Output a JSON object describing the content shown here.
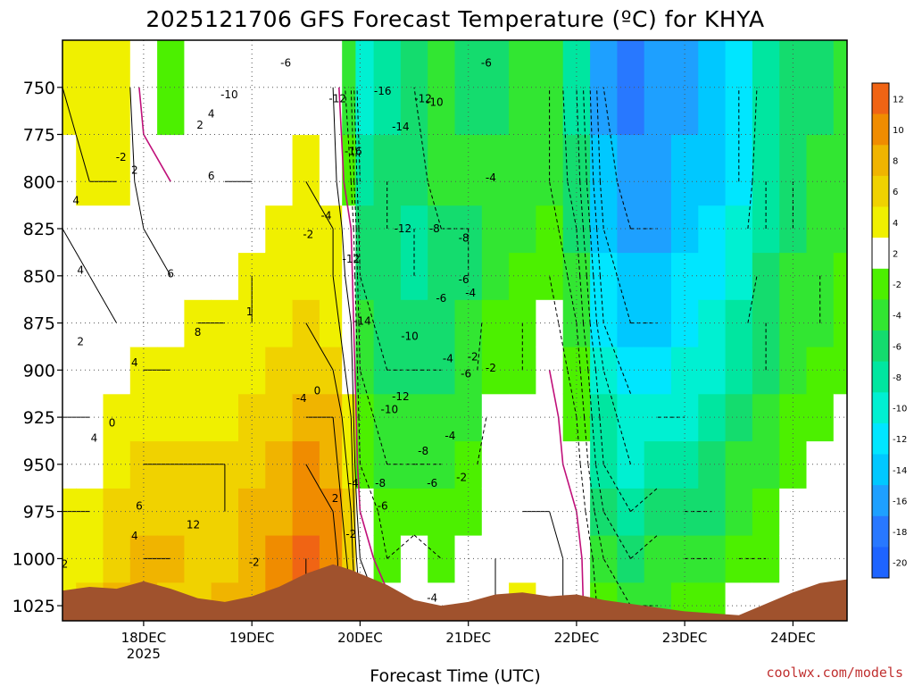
{
  "chart_data": {
    "type": "heatmap",
    "title": "2025121706 GFS Forecast Temperature (ºC) for KHYA",
    "xlabel": "Forecast Time (UTC)",
    "ylabel": "",
    "credit": "coolwx.com/models",
    "y_axis": {
      "units": "hPa",
      "range": [
        725,
        1033
      ],
      "ticks": [
        "750",
        "775",
        "800",
        "825",
        "850",
        "875",
        "900",
        "925",
        "950",
        "975",
        "1000",
        "1025"
      ],
      "tick_values": [
        750,
        775,
        800,
        825,
        850,
        875,
        900,
        925,
        950,
        975,
        1000,
        1025
      ]
    },
    "x_axis": {
      "units": "forecast hours",
      "range": [
        0,
        174
      ],
      "ticks": [
        {
          "hour": 18,
          "label": "18DEC",
          "sub": "2025"
        },
        {
          "hour": 42,
          "label": "19DEC",
          "sub": ""
        },
        {
          "hour": 66,
          "label": "20DEC",
          "sub": ""
        },
        {
          "hour": 90,
          "label": "21DEC",
          "sub": ""
        },
        {
          "hour": 114,
          "label": "22DEC",
          "sub": ""
        },
        {
          "hour": 138,
          "label": "23DEC",
          "sub": ""
        },
        {
          "hour": 162,
          "label": "24DEC",
          "sub": ""
        }
      ]
    },
    "colorbar": {
      "levels": [
        "12",
        "10",
        "8",
        "6",
        "4",
        "2",
        "-2",
        "-4",
        "-6",
        "-8",
        "-10",
        "-12",
        "-14",
        "-16",
        "-18",
        "-20"
      ],
      "colors": [
        "#f06414",
        "#f08c00",
        "#f0b400",
        "#f0d200",
        "#f0f000",
        "#ffffff",
        "#4cf000",
        "#32e632",
        "#14dc6e",
        "#00e6a0",
        "#00f0d2",
        "#00e6ff",
        "#00c8ff",
        "#1ea0ff",
        "#2878ff",
        "#1e64ff"
      ]
    },
    "columns": [
      {
        "hour": 0,
        "temps": [
          4,
          4,
          4,
          3,
          2,
          1,
          0,
          1,
          2,
          3,
          4
        ]
      },
      {
        "hour": 6,
        "temps": [
          6,
          5,
          4,
          3,
          2,
          1,
          1,
          2,
          3,
          4,
          5
        ]
      },
      {
        "hour": 12,
        "temps": [
          8,
          7,
          6,
          5,
          4,
          3,
          2,
          3,
          3,
          4,
          5
        ]
      },
      {
        "hour": 18,
        "temps": [
          8,
          8,
          7,
          6,
          5,
          4,
          3,
          2,
          2,
          1,
          -1
        ]
      },
      {
        "hour": 24,
        "temps": [
          7,
          8,
          7,
          6,
          5,
          4,
          3,
          2,
          1,
          0,
          -2
        ]
      },
      {
        "hour": 30,
        "temps": [
          6,
          7,
          7,
          6,
          5,
          5,
          4,
          3,
          2,
          1,
          0
        ]
      },
      {
        "hour": 36,
        "temps": [
          8,
          7,
          6,
          6,
          5,
          5,
          4,
          3,
          3,
          2,
          1
        ]
      },
      {
        "hour": 42,
        "temps": [
          9,
          9,
          8,
          7,
          6,
          5,
          4,
          4,
          3,
          2,
          1
        ]
      },
      {
        "hour": 48,
        "temps": [
          11,
          10,
          9,
          8,
          7,
          6,
          5,
          5,
          4,
          3,
          2
        ]
      },
      {
        "hour": 54,
        "temps": [
          12,
          12,
          11,
          10,
          8,
          7,
          6,
          5,
          4,
          4,
          3
        ]
      },
      {
        "hour": 60,
        "temps": [
          11,
          11,
          10,
          9,
          8,
          6,
          5,
          4,
          4,
          3,
          2
        ]
      },
      {
        "hour": 64,
        "temps": [
          8,
          7,
          6,
          5,
          4,
          3,
          2,
          1,
          0,
          -2,
          -4
        ]
      },
      {
        "hour": 66,
        "temps": [
          4,
          2,
          0,
          -2,
          -3,
          -4,
          -5,
          -6,
          -7,
          -8,
          -10
        ]
      },
      {
        "hour": 72,
        "temps": [
          1,
          -2,
          -3,
          -4,
          -5,
          -6,
          -7,
          -7,
          -6,
          -6,
          -8
        ]
      },
      {
        "hour": 78,
        "temps": [
          0,
          -1,
          -3,
          -4,
          -5,
          -6,
          -7,
          -8,
          -8,
          -7,
          -6
        ]
      },
      {
        "hour": 84,
        "temps": [
          -1,
          -2,
          -3,
          -4,
          -5,
          -6,
          -7,
          -7,
          -6,
          -5,
          -5
        ]
      },
      {
        "hour": 90,
        "temps": [
          1,
          0,
          -2,
          -3,
          -4,
          -5,
          -5,
          -6,
          -6,
          -5,
          -6
        ]
      },
      {
        "hour": 96,
        "temps": [
          2,
          2,
          1,
          0,
          -1,
          -2,
          -3,
          -4,
          -4,
          -5,
          -6
        ]
      },
      {
        "hour": 102,
        "temps": [
          4,
          3,
          2,
          1,
          0,
          -2,
          -2,
          -3,
          -4,
          -4,
          -5
        ]
      },
      {
        "hour": 108,
        "temps": [
          3,
          3,
          2,
          1,
          1,
          0,
          -1,
          -2,
          -3,
          -4,
          -4
        ]
      },
      {
        "hour": 114,
        "temps": [
          1,
          1,
          0,
          -1,
          -2,
          -3,
          -4,
          -5,
          -6,
          -7,
          -8
        ]
      },
      {
        "hour": 120,
        "temps": [
          -3,
          -4,
          -6,
          -8,
          -9,
          -10,
          -12,
          -13,
          -14,
          -15,
          -16
        ]
      },
      {
        "hour": 126,
        "temps": [
          -4,
          -6,
          -8,
          -10,
          -11,
          -13,
          -14,
          -15,
          -16,
          -17,
          -18
        ]
      },
      {
        "hour": 132,
        "temps": [
          -4,
          -5,
          -7,
          -9,
          -10,
          -12,
          -14,
          -15,
          -16,
          -17,
          -17
        ]
      },
      {
        "hour": 138,
        "temps": [
          -3,
          -4,
          -6,
          -8,
          -10,
          -11,
          -12,
          -13,
          -14,
          -15,
          -16
        ]
      },
      {
        "hour": 144,
        "temps": [
          -2,
          -4,
          -6,
          -7,
          -8,
          -10,
          -11,
          -12,
          -13,
          -14,
          -15
        ]
      },
      {
        "hour": 150,
        "temps": [
          -1,
          -2,
          -4,
          -5,
          -6,
          -8,
          -9,
          -10,
          -11,
          -12,
          -12
        ]
      },
      {
        "hour": 156,
        "temps": [
          0,
          -2,
          -3,
          -4,
          -5,
          -6,
          -6,
          -7,
          -8,
          -8,
          -9
        ]
      },
      {
        "hour": 162,
        "temps": [
          1,
          0,
          -1,
          -2,
          -3,
          -4,
          -5,
          -5,
          -6,
          -6,
          -7
        ]
      },
      {
        "hour": 168,
        "temps": [
          2,
          1,
          0,
          -1,
          -2,
          -3,
          -4,
          -4,
          -5,
          -5,
          -6
        ]
      },
      {
        "hour": 174,
        "temps": [
          3,
          2,
          1,
          0,
          -1,
          -2,
          -3,
          -3,
          -4,
          -4,
          -5
        ]
      }
    ],
    "row_pressures": [
      1025,
      1000,
      975,
      950,
      925,
      900,
      875,
      850,
      825,
      800,
      750
    ],
    "terrain_surface_hpa": [
      [
        0,
        1017
      ],
      [
        6,
        1015
      ],
      [
        12,
        1016
      ],
      [
        18,
        1012
      ],
      [
        24,
        1016
      ],
      [
        30,
        1021
      ],
      [
        36,
        1023
      ],
      [
        42,
        1020
      ],
      [
        48,
        1015
      ],
      [
        54,
        1008
      ],
      [
        60,
        1003
      ],
      [
        64,
        1006
      ],
      [
        72,
        1014
      ],
      [
        78,
        1022
      ],
      [
        84,
        1025
      ],
      [
        90,
        1023
      ],
      [
        96,
        1019
      ],
      [
        102,
        1018
      ],
      [
        108,
        1020
      ],
      [
        114,
        1019
      ],
      [
        120,
        1022
      ],
      [
        126,
        1024
      ],
      [
        132,
        1026
      ],
      [
        138,
        1028
      ],
      [
        144,
        1029
      ],
      [
        150,
        1030
      ],
      [
        156,
        1024
      ],
      [
        162,
        1018
      ],
      [
        168,
        1013
      ],
      [
        174,
        1011
      ]
    ],
    "contour_labels": [
      {
        "text": "2",
        "hour": 0.5,
        "p": 1003
      },
      {
        "text": "4",
        "hour": 3,
        "p": 810
      },
      {
        "text": "4",
        "hour": 4,
        "p": 847
      },
      {
        "text": "2",
        "hour": 4,
        "p": 885
      },
      {
        "text": "4",
        "hour": 7,
        "p": 936
      },
      {
        "text": "0",
        "hour": 11,
        "p": 928
      },
      {
        "text": "-2",
        "hour": 13,
        "p": 787
      },
      {
        "text": "2",
        "hour": 16,
        "p": 794
      },
      {
        "text": "4",
        "hour": 16,
        "p": 896
      },
      {
        "text": "6",
        "hour": 17,
        "p": 972
      },
      {
        "text": "4",
        "hour": 16,
        "p": 988
      },
      {
        "text": "6",
        "hour": 24,
        "p": 849
      },
      {
        "text": "2",
        "hour": 30.5,
        "p": 770
      },
      {
        "text": "4",
        "hour": 33,
        "p": 764
      },
      {
        "text": "6",
        "hour": 33,
        "p": 797
      },
      {
        "text": "8",
        "hour": 30,
        "p": 880
      },
      {
        "text": "12",
        "hour": 29,
        "p": 982
      },
      {
        "text": "-10",
        "hour": 37,
        "p": 754
      },
      {
        "text": "1",
        "hour": 41.5,
        "p": 869
      },
      {
        "text": "-2",
        "hour": 42.5,
        "p": 1002
      },
      {
        "text": "-6",
        "hour": 49.5,
        "p": 737
      },
      {
        "text": "-4",
        "hour": 53,
        "p": 915
      },
      {
        "text": "-2",
        "hour": 54.5,
        "p": 828
      },
      {
        "text": "-4",
        "hour": 58.5,
        "p": 818
      },
      {
        "text": "0",
        "hour": 56.5,
        "p": 911
      },
      {
        "text": "2",
        "hour": 60.5,
        "p": 968
      },
      {
        "text": "-12",
        "hour": 61,
        "p": 756
      },
      {
        "text": "-16",
        "hour": 64.5,
        "p": 784
      },
      {
        "text": "-12",
        "hour": 64,
        "p": 841
      },
      {
        "text": "-14",
        "hour": 66.5,
        "p": 874
      },
      {
        "text": "-4",
        "hour": 64.5,
        "p": 960
      },
      {
        "text": "-2",
        "hour": 64,
        "p": 987
      },
      {
        "text": "-8",
        "hour": 70.5,
        "p": 960
      },
      {
        "text": "-6",
        "hour": 71,
        "p": 972
      },
      {
        "text": "-16",
        "hour": 71,
        "p": 752
      },
      {
        "text": "-14",
        "hour": 75,
        "p": 771
      },
      {
        "text": "-12",
        "hour": 75.5,
        "p": 825
      },
      {
        "text": "-10",
        "hour": 77,
        "p": 882
      },
      {
        "text": "-12",
        "hour": 75,
        "p": 914
      },
      {
        "text": "-10",
        "hour": 72.5,
        "p": 921
      },
      {
        "text": "-8",
        "hour": 80,
        "p": 943
      },
      {
        "text": "-6",
        "hour": 82,
        "p": 960
      },
      {
        "text": "-12",
        "hour": 80,
        "p": 756
      },
      {
        "text": "-10",
        "hour": 82.5,
        "p": 758
      },
      {
        "text": "-8",
        "hour": 82.5,
        "p": 825
      },
      {
        "text": "-6",
        "hour": 84,
        "p": 862
      },
      {
        "text": "-4",
        "hour": 86,
        "p": 935
      },
      {
        "text": "-4",
        "hour": 82,
        "p": 1021
      },
      {
        "text": "-2",
        "hour": 88.5,
        "p": 957
      },
      {
        "text": "-4",
        "hour": 85.5,
        "p": 894
      },
      {
        "text": "-8",
        "hour": 89,
        "p": 830
      },
      {
        "text": "-6",
        "hour": 89.5,
        "p": 902
      },
      {
        "text": "-6",
        "hour": 89,
        "p": 852
      },
      {
        "text": "-4",
        "hour": 90.5,
        "p": 859
      },
      {
        "text": "-2",
        "hour": 91,
        "p": 893
      },
      {
        "text": "-2",
        "hour": 95,
        "p": 899
      },
      {
        "text": "-6",
        "hour": 94,
        "p": 737
      },
      {
        "text": "-4",
        "hour": 95,
        "p": 798
      }
    ],
    "band_lines": {
      "solid_color": "#000000",
      "dashed_color": "#000000",
      "zero_color": "#c0107a"
    }
  }
}
